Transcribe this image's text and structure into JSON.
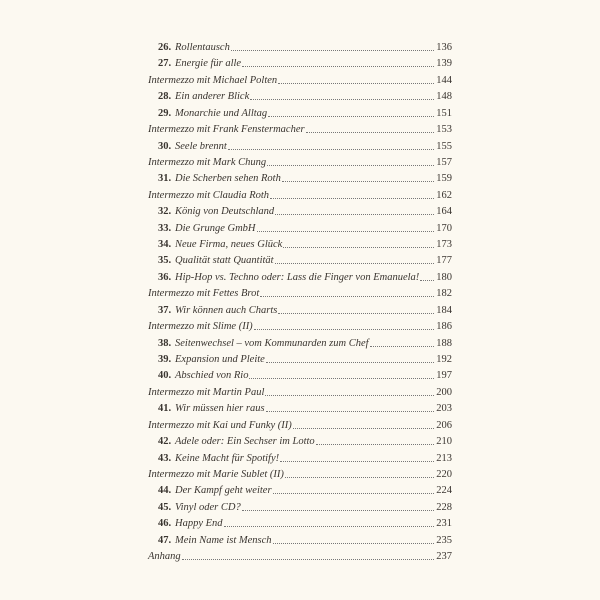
{
  "toc": {
    "entries": [
      {
        "number": "26.",
        "title": "Rollentausch",
        "page": "136"
      },
      {
        "number": "27.",
        "title": "Energie für alle",
        "page": "139"
      },
      {
        "title": "Intermezzo mit Michael Polten",
        "page": "144"
      },
      {
        "number": "28.",
        "title": "Ein anderer Blick",
        "page": "148"
      },
      {
        "number": "29.",
        "title": "Monarchie und Alltag",
        "page": "151"
      },
      {
        "title": "Intermezzo mit Frank Fenstermacher",
        "page": "153"
      },
      {
        "number": "30.",
        "title": "Seele brennt",
        "page": "155"
      },
      {
        "title": "Intermezzo mit Mark Chung",
        "page": "157"
      },
      {
        "number": "31.",
        "title": "Die Scherben sehen Roth",
        "page": "159"
      },
      {
        "title": "Intermezzo mit Claudia Roth",
        "page": "162"
      },
      {
        "number": "32.",
        "title": "König von Deutschland",
        "page": "164"
      },
      {
        "number": "33.",
        "title": "Die Grunge GmbH",
        "page": "170"
      },
      {
        "number": "34.",
        "title": "Neue Firma, neues Glück",
        "page": "173"
      },
      {
        "number": "35.",
        "title": "Qualität statt Quantität",
        "page": "177"
      },
      {
        "number": "36.",
        "title": "Hip-Hop vs. Techno oder: Lass die Finger von Emanuela!",
        "page": "180"
      },
      {
        "title": "Intermezzo mit Fettes Brot",
        "page": "182"
      },
      {
        "number": "37.",
        "title": "Wir können auch Charts",
        "page": "184"
      },
      {
        "title": "Intermezzo mit Slime (II)",
        "page": "186"
      },
      {
        "number": "38.",
        "title": "Seitenwechsel – vom Kommunarden zum Chef",
        "page": "188"
      },
      {
        "number": "39.",
        "title": "Expansion und Pleite",
        "page": "192"
      },
      {
        "number": "40.",
        "title": "Abschied von Rio",
        "page": "197"
      },
      {
        "title": "Intermezzo mit Martin Paul",
        "page": "200"
      },
      {
        "number": "41.",
        "title": "Wir müssen hier raus",
        "page": "203"
      },
      {
        "title": "Intermezzo mit Kai und Funky (II)",
        "page": "206"
      },
      {
        "number": "42.",
        "title": "Adele oder: Ein Sechser im Lotto",
        "page": "210"
      },
      {
        "number": "43.",
        "title": "Keine Macht für Spotify!",
        "page": "213"
      },
      {
        "title": "Intermezzo mit Marie Sublet (II)",
        "page": "220"
      },
      {
        "number": "44.",
        "title": "Der Kampf geht weiter",
        "page": "224"
      },
      {
        "number": "45.",
        "title": "Vinyl oder CD?",
        "page": "228"
      },
      {
        "number": "46.",
        "title": "Happy End",
        "page": "231"
      },
      {
        "number": "47.",
        "title": "Mein Name ist Mensch",
        "page": "235"
      },
      {
        "title": "Anhang",
        "page": "237"
      }
    ]
  }
}
